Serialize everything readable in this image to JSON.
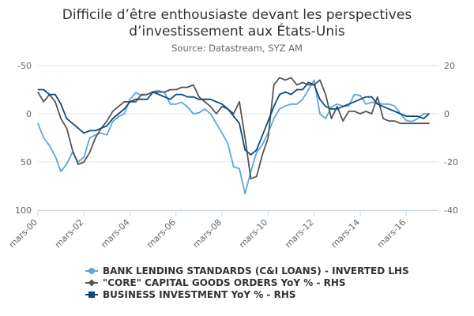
{
  "chart_data": {
    "type": "line",
    "title_line1": "Difficile d’être enthousiaste devant les perspectives",
    "title_line2": "d’investissement aux États-Unis",
    "subtitle": "Source: Datastream, SYZ AM",
    "x_tick_labels": [
      "mars-00",
      "mars-02",
      "mars-04",
      "mars-06",
      "mars-08",
      "mars-10",
      "mars-12",
      "mars-14",
      "mars-16"
    ],
    "x_tick_years": [
      2000,
      2002,
      2004,
      2006,
      2008,
      2010,
      2012,
      2014,
      2016
    ],
    "xlim": [
      2000.0,
      2017.4
    ],
    "left_axis": {
      "ticks": [
        "-50",
        "0",
        "50",
        "100"
      ],
      "tick_values": [
        -50,
        0,
        50,
        100
      ],
      "range": [
        -50,
        100
      ],
      "inverted": true
    },
    "right_axis": {
      "ticks": [
        "20",
        "0",
        "-20",
        "-40"
      ],
      "tick_values": [
        20,
        0,
        -20,
        -40
      ],
      "range": [
        -40,
        20
      ]
    },
    "grid": true,
    "legend_position": "bottom",
    "series": [
      {
        "name": "BANK LENDING STANDARDS (C&I LOANS) - INVERTED LHS",
        "axis": "left",
        "color": "#5aa8dc",
        "marker": "circle",
        "x": [
          2000.0,
          2000.25,
          2000.5,
          2000.75,
          2001.0,
          2001.25,
          2001.5,
          2001.75,
          2002.0,
          2002.25,
          2002.5,
          2002.75,
          2003.0,
          2003.25,
          2003.5,
          2003.75,
          2004.0,
          2004.25,
          2004.5,
          2004.75,
          2005.0,
          2005.25,
          2005.5,
          2005.75,
          2006.0,
          2006.25,
          2006.5,
          2006.75,
          2007.0,
          2007.25,
          2007.5,
          2007.75,
          2008.0,
          2008.25,
          2008.5,
          2008.75,
          2009.0,
          2009.25,
          2009.5,
          2009.75,
          2010.0,
          2010.25,
          2010.5,
          2010.75,
          2011.0,
          2011.25,
          2011.5,
          2011.75,
          2012.0,
          2012.25,
          2012.5,
          2012.75,
          2013.0,
          2013.25,
          2013.5,
          2013.75,
          2014.0,
          2014.25,
          2014.5,
          2014.75,
          2015.0,
          2015.25,
          2015.5,
          2015.75,
          2016.0,
          2016.25,
          2016.5,
          2016.75,
          2017.0
        ],
        "y": [
          10,
          25,
          33,
          44,
          60,
          52,
          40,
          50,
          45,
          25,
          22,
          20,
          22,
          8,
          3,
          0,
          -15,
          -22,
          -19,
          -20,
          -23,
          -24,
          -22,
          -10,
          -10,
          -12,
          -7,
          0,
          -1,
          -5,
          0,
          10,
          20,
          31,
          55,
          57,
          83,
          60,
          40,
          32,
          20,
          5,
          -5,
          -8,
          -10,
          -10,
          -15,
          -25,
          -35,
          0,
          5,
          -7,
          -10,
          -8,
          -8,
          -20,
          -19,
          -10,
          -12,
          -11,
          -10,
          -10,
          -8,
          0,
          7,
          8,
          5,
          0,
          0
        ]
      },
      {
        "name": "\"CORE\" CAPITAL GOODS ORDERS YoY % - RHS",
        "axis": "right",
        "color": "#555555",
        "marker": "diamond",
        "x": [
          2000.0,
          2000.25,
          2000.5,
          2000.75,
          2001.0,
          2001.25,
          2001.5,
          2001.75,
          2002.0,
          2002.25,
          2002.5,
          2002.75,
          2003.0,
          2003.25,
          2003.5,
          2003.75,
          2004.0,
          2004.25,
          2004.5,
          2004.75,
          2005.0,
          2005.25,
          2005.5,
          2005.75,
          2006.0,
          2006.25,
          2006.5,
          2006.75,
          2007.0,
          2007.25,
          2007.5,
          2007.75,
          2008.0,
          2008.25,
          2008.5,
          2008.75,
          2009.0,
          2009.25,
          2009.5,
          2009.75,
          2010.0,
          2010.25,
          2010.5,
          2010.75,
          2011.0,
          2011.25,
          2011.5,
          2011.75,
          2012.0,
          2012.25,
          2012.5,
          2012.75,
          2013.0,
          2013.25,
          2013.5,
          2013.75,
          2014.0,
          2014.25,
          2014.5,
          2014.75,
          2015.0,
          2015.25,
          2015.5,
          2015.75,
          2016.0,
          2016.25,
          2016.5,
          2016.75,
          2017.0
        ],
        "y": [
          9,
          5,
          8,
          5,
          -2,
          -6,
          -15,
          -21,
          -20,
          -16,
          -10,
          -6,
          -3,
          1,
          3,
          5,
          5,
          5,
          8,
          8,
          9,
          9,
          9,
          10,
          10,
          11,
          11,
          12,
          7,
          5,
          3,
          0,
          3,
          2,
          0,
          5,
          -10,
          -27,
          -26,
          -17,
          -10,
          12,
          15,
          14,
          15,
          12,
          13,
          12,
          12,
          14,
          8,
          -2,
          3,
          -3,
          1,
          1,
          0,
          1,
          0,
          7,
          -2,
          -3,
          -3,
          -4,
          -4,
          -4,
          -4,
          -4,
          -4
        ]
      },
      {
        "name": "BUSINESS INVESTMENT YoY % - RHS",
        "axis": "right",
        "color": "#0d4b7c",
        "marker": "square",
        "x": [
          2000.0,
          2000.25,
          2000.5,
          2000.75,
          2001.0,
          2001.25,
          2001.5,
          2001.75,
          2002.0,
          2002.25,
          2002.5,
          2002.75,
          2003.0,
          2003.25,
          2003.5,
          2003.75,
          2004.0,
          2004.25,
          2004.5,
          2004.75,
          2005.0,
          2005.25,
          2005.5,
          2005.75,
          2006.0,
          2006.25,
          2006.5,
          2006.75,
          2007.0,
          2007.25,
          2007.5,
          2007.75,
          2008.0,
          2008.25,
          2008.5,
          2008.75,
          2009.0,
          2009.25,
          2009.5,
          2009.75,
          2010.0,
          2010.25,
          2010.5,
          2010.75,
          2011.0,
          2011.25,
          2011.5,
          2011.75,
          2012.0,
          2012.25,
          2012.5,
          2012.75,
          2013.0,
          2013.25,
          2013.5,
          2013.75,
          2014.0,
          2014.25,
          2014.5,
          2014.75,
          2015.0,
          2015.25,
          2015.5,
          2015.75,
          2016.0,
          2016.25,
          2016.5,
          2016.75,
          2017.0
        ],
        "y": [
          10,
          10,
          8,
          8,
          4,
          -2,
          -4,
          -6,
          -8,
          -7,
          -7,
          -6,
          -5,
          -2,
          0,
          2,
          5,
          6,
          6,
          6,
          9,
          8,
          7,
          6,
          8,
          8,
          7,
          7,
          6,
          6,
          6,
          5,
          4,
          2,
          -1,
          -4,
          -15,
          -17,
          -15,
          -9,
          -3,
          3,
          8,
          9,
          8,
          10,
          10,
          13,
          12,
          6,
          3,
          2,
          2,
          3,
          4,
          5,
          6,
          7,
          7,
          4,
          3,
          2,
          1,
          0,
          -1,
          -1,
          -1,
          -2,
          0
        ]
      }
    ]
  }
}
